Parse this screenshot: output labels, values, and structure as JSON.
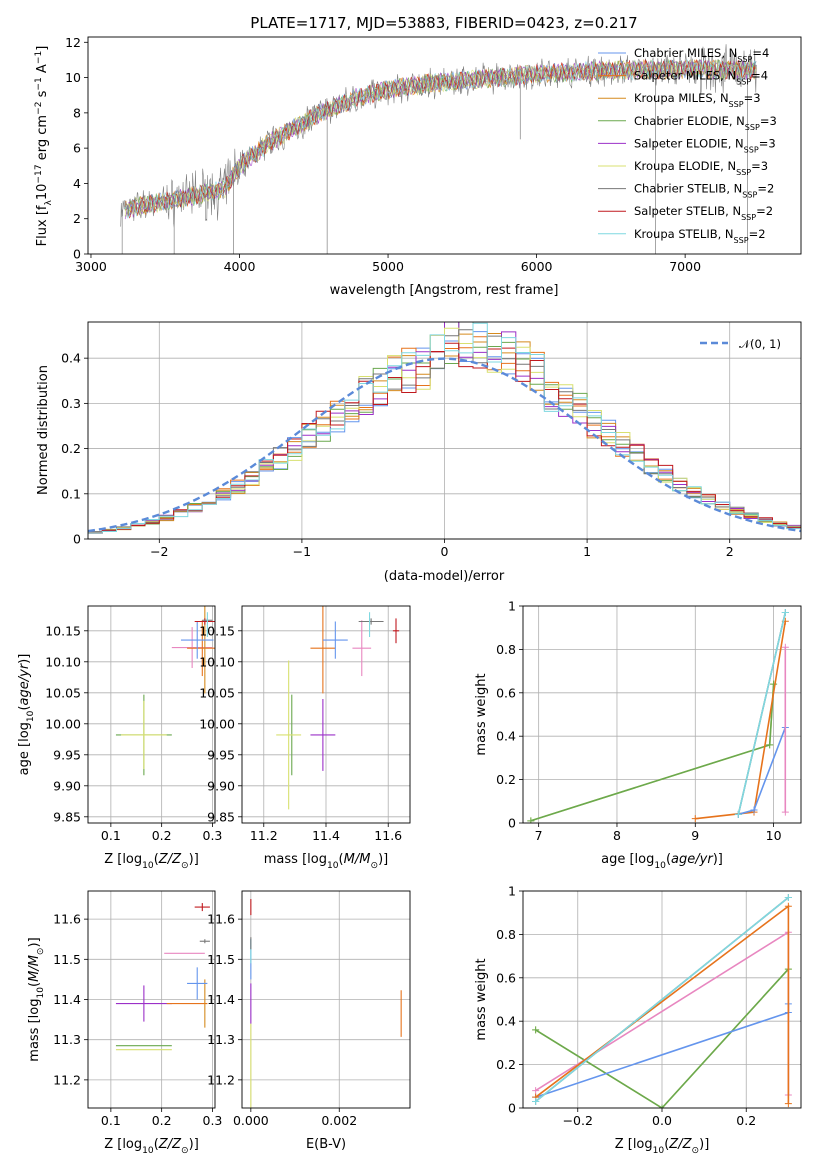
{
  "colors": {
    "chabrier_miles": "#6495ed",
    "salpeter_miles": "#e6731c",
    "kroupa_miles": "#d58a1e",
    "chabrier_elodie": "#6aa84f",
    "salpeter_elodie": "#9b30c8",
    "kroupa_elodie": "#d8e070",
    "chabrier_stelib": "#777777",
    "salpeter_stelib": "#c0191e",
    "kroupa_stelib": "#7fd8e0",
    "pink": "#e887c0",
    "normal_curve": "#5b8ad8",
    "grid": "#b0b0b0"
  },
  "chart_data": [
    {
      "id": "spectrum",
      "type": "line",
      "title": "PLATE=1717, MJD=53883, FIBERID=0423, z=0.217",
      "xlabel": "wavelength [Angstrom, rest frame]",
      "ylabel": "Flux [f_λ 10^-17 erg cm^-2 s^-1 A^-1]",
      "xlim": [
        2980,
        7780
      ],
      "ylim": [
        0,
        12.3
      ],
      "xticks": [
        3000,
        4000,
        5000,
        6000,
        7000
      ],
      "yticks": [
        0,
        2,
        4,
        6,
        8,
        10,
        12
      ],
      "grid": false,
      "legend_position": "top-right",
      "series": [
        {
          "name": "Chabrier MILES, N_SSP=4"
        },
        {
          "name": "Salpeter MILES, N_SSP=4"
        },
        {
          "name": "Kroupa MILES, N_SSP=3"
        },
        {
          "name": "Chabrier ELODIE, N_SSP=3"
        },
        {
          "name": "Salpeter ELODIE, N_SSP=3"
        },
        {
          "name": "Kroupa ELODIE, N_SSP=3"
        },
        {
          "name": "Chabrier STELIB, N_SSP=2"
        },
        {
          "name": "Salpeter STELIB, N_SSP=2"
        },
        {
          "name": "Kroupa STELIB, N_SSP=2"
        }
      ],
      "continuum": {
        "x": [
          3200,
          3500,
          3700,
          3900,
          4000,
          4200,
          4500,
          4800,
          5000,
          5300,
          5600,
          6000,
          6500,
          7000,
          7500
        ],
        "y": [
          2.5,
          3.0,
          3.3,
          3.7,
          5.0,
          6.3,
          7.8,
          8.9,
          9.3,
          9.7,
          9.9,
          10.2,
          10.4,
          10.5,
          10.4
        ]
      }
    },
    {
      "id": "residuals",
      "type": "area",
      "xlabel": "(data-model)/error",
      "ylabel": "Normed distribution",
      "xlim": [
        -2.5,
        2.5
      ],
      "ylim": [
        0,
        0.48
      ],
      "xticks": [
        -2,
        -1,
        0,
        1,
        2
      ],
      "yticks": [
        0.0,
        0.1,
        0.2,
        0.3,
        0.4
      ],
      "grid": true,
      "legend_position": "top-right",
      "legend": "𝒩(0, 1)",
      "normal": {
        "mean": 0,
        "std": 1
      }
    },
    {
      "id": "age_vs_Z",
      "type": "scatter",
      "xlabel": "Z [log10(Z/Z⊙)]",
      "ylabel": "age [log10(age/yr)]",
      "xlim": [
        0.055,
        0.305
      ],
      "ylim": [
        9.84,
        10.19
      ],
      "xticks": [
        0.1,
        0.2,
        0.3
      ],
      "xtick_labels": [
        "0.1",
        "0.2",
        "0.3"
      ],
      "yticks": [
        9.85,
        9.9,
        9.95,
        10.0,
        10.05,
        10.1,
        10.15
      ],
      "ytick_labels": [
        "9.85",
        "9.90",
        "9.95",
        "10.00",
        "10.05",
        "10.10",
        "10.15"
      ],
      "grid": true,
      "points": [
        {
          "x": 0.165,
          "y": 9.982,
          "xerr": 0.055,
          "yerr": 0.065,
          "color": "#6aa84f"
        },
        {
          "x": 0.165,
          "y": 9.982,
          "xerr": 0.045,
          "yerr": 0.055,
          "color": "#d8e070"
        },
        {
          "x": 0.26,
          "y": 10.123,
          "xerr": 0.04,
          "yerr": 0.033,
          "color": "#e887c0"
        },
        {
          "x": 0.28,
          "y": 10.122,
          "xerr": 0.03,
          "yerr": 0.045,
          "color": "#e6731c"
        },
        {
          "x": 0.285,
          "y": 10.122,
          "xerr": 0.0,
          "yerr": 0.073,
          "color": "#d58a1e"
        },
        {
          "x": 0.27,
          "y": 10.135,
          "xerr": 0.032,
          "yerr": 0.03,
          "color": "#6495ed"
        },
        {
          "x": 0.285,
          "y": 10.165,
          "xerr": 0.02,
          "yerr": 0.005,
          "color": "#c0191e"
        },
        {
          "x": 0.29,
          "y": 10.167,
          "xerr": 0.01,
          "yerr": 0.003,
          "color": "#777777"
        },
        {
          "x": 0.29,
          "y": 10.16,
          "xerr": 0.0,
          "yerr": 0.02,
          "color": "#7fd8e0"
        }
      ]
    },
    {
      "id": "age_vs_mass",
      "type": "scatter",
      "xlabel": "mass [log10(M/M⊙)]",
      "ylabel": "",
      "xlim": [
        11.13,
        11.67
      ],
      "ylim": [
        9.84,
        10.19
      ],
      "xticks": [
        11.2,
        11.4,
        11.6
      ],
      "xtick_labels": [
        "11.2",
        "11.4",
        "11.6"
      ],
      "yticks": [
        9.85,
        9.9,
        9.95,
        10.0,
        10.05,
        10.1,
        10.15
      ],
      "ytick_labels": [
        "9.85",
        "9.90",
        "9.95",
        "10.00",
        "10.05",
        "10.10",
        "10.15"
      ],
      "grid": true,
      "points": [
        {
          "x": 11.29,
          "y": 9.982,
          "xerr": 0.0,
          "yerr": 0.065,
          "color": "#6aa84f"
        },
        {
          "x": 11.28,
          "y": 9.982,
          "xerr": 0.04,
          "yerr": 0.12,
          "color": "#d8e070"
        },
        {
          "x": 11.39,
          "y": 9.982,
          "xerr": 0.04,
          "yerr": 0.058,
          "color": "#9b30c8"
        },
        {
          "x": 11.39,
          "y": 10.122,
          "xerr": 0.04,
          "yerr": 0.073,
          "color": "#e6731c"
        },
        {
          "x": 11.43,
          "y": 10.135,
          "xerr": 0.04,
          "yerr": 0.03,
          "color": "#6495ed"
        },
        {
          "x": 11.515,
          "y": 10.122,
          "xerr": 0.03,
          "yerr": 0.045,
          "color": "#e887c0"
        },
        {
          "x": 11.545,
          "y": 10.165,
          "xerr": 0.04,
          "yerr": 0.005,
          "color": "#777777"
        },
        {
          "x": 11.625,
          "y": 10.15,
          "xerr": 0.01,
          "yerr": 0.02,
          "color": "#c0191e"
        },
        {
          "x": 11.54,
          "y": 10.16,
          "xerr": 0.0,
          "yerr": 0.02,
          "color": "#7fd8e0"
        }
      ]
    },
    {
      "id": "weight_vs_age",
      "type": "line",
      "xlabel": "age [log10(age/yr)]",
      "ylabel": "mass weight",
      "xlim": [
        6.8,
        10.35
      ],
      "ylim": [
        0,
        1.0
      ],
      "xticks": [
        7,
        8,
        9,
        10
      ],
      "yticks": [
        0.0,
        0.2,
        0.4,
        0.6,
        0.8,
        1.0
      ],
      "grid": true,
      "series": [
        {
          "color": "#d8e070",
          "x": [
            6.9,
            9.95,
            10.0
          ],
          "y": [
            0.01,
            0.36,
            0.64
          ]
        },
        {
          "color": "#6aa84f",
          "x": [
            6.9,
            9.95,
            10.0
          ],
          "y": [
            0.01,
            0.36,
            0.64
          ]
        },
        {
          "color": "#e6731c",
          "x": [
            9.0,
            9.75,
            10.15
          ],
          "y": [
            0.02,
            0.05,
            0.93
          ]
        },
        {
          "color": "#6495ed",
          "x": [
            9.55,
            9.75,
            10.15
          ],
          "y": [
            0.04,
            0.06,
            0.44
          ]
        },
        {
          "color": "#e887c0",
          "x": [
            10.15,
            10.15
          ],
          "y": [
            0.81,
            0.05
          ]
        },
        {
          "color": "#777777",
          "x": [
            9.55,
            10.15
          ],
          "y": [
            0.04,
            0.97
          ]
        },
        {
          "color": "#7fd8e0",
          "x": [
            9.55,
            10.15
          ],
          "y": [
            0.04,
            0.97
          ]
        }
      ]
    },
    {
      "id": "mass_vs_Z",
      "type": "scatter",
      "xlabel": "Z [log10(Z/Z⊙)]",
      "ylabel": "mass [log10(M/M⊙)]",
      "xlim": [
        0.055,
        0.305
      ],
      "ylim": [
        11.13,
        11.67
      ],
      "xticks": [
        0.1,
        0.2,
        0.3
      ],
      "xtick_labels": [
        "0.1",
        "0.2",
        "0.3"
      ],
      "yticks": [
        11.2,
        11.3,
        11.4,
        11.5,
        11.6
      ],
      "ytick_labels": [
        "11.2",
        "11.3",
        "11.4",
        "11.5",
        "11.6"
      ],
      "grid": true,
      "points": [
        {
          "x": 0.165,
          "y": 11.285,
          "xerr": 0.055,
          "yerr": 0.0,
          "color": "#6aa84f"
        },
        {
          "x": 0.165,
          "y": 11.275,
          "xerr": 0.055,
          "yerr": 0.0,
          "color": "#d8e070"
        },
        {
          "x": 0.165,
          "y": 11.39,
          "xerr": 0.055,
          "yerr": 0.045,
          "color": "#9b30c8"
        },
        {
          "x": 0.25,
          "y": 11.39,
          "xerr": 0.04,
          "yerr": 0.0,
          "color": "#e6731c"
        },
        {
          "x": 0.285,
          "y": 11.39,
          "xerr": 0.0,
          "yerr": 0.06,
          "color": "#d58a1e"
        },
        {
          "x": 0.27,
          "y": 11.44,
          "xerr": 0.02,
          "yerr": 0.04,
          "color": "#6495ed"
        },
        {
          "x": 0.245,
          "y": 11.515,
          "xerr": 0.04,
          "yerr": 0.0,
          "color": "#e887c0"
        },
        {
          "x": 0.285,
          "y": 11.545,
          "xerr": 0.01,
          "yerr": 0.005,
          "color": "#777777"
        },
        {
          "x": 0.28,
          "y": 11.63,
          "xerr": 0.015,
          "yerr": 0.01,
          "color": "#c0191e"
        }
      ]
    },
    {
      "id": "mass_vs_EBV",
      "type": "scatter",
      "xlabel": "E(B-V)",
      "ylabel": "",
      "xlim": [
        -0.0002,
        0.0036
      ],
      "ylim": [
        11.13,
        11.67
      ],
      "xticks": [
        0.0,
        0.002
      ],
      "xtick_labels": [
        "0.000",
        "0.002"
      ],
      "yticks": [
        11.2,
        11.3,
        11.4,
        11.5,
        11.6
      ],
      "ytick_labels": [
        "11.2",
        "11.3",
        "11.4",
        "11.5",
        "11.6"
      ],
      "grid": true,
      "points": [
        {
          "x": 0.0,
          "y": 11.22,
          "xerr": 0.0,
          "yerr": 0.12,
          "color": "#d8e070"
        },
        {
          "x": 0.0,
          "y": 11.39,
          "xerr": 0.0,
          "yerr": 0.05,
          "color": "#9b30c8"
        },
        {
          "x": 0.0,
          "y": 11.5,
          "xerr": 0.0,
          "yerr": 0.05,
          "color": "#6495ed"
        },
        {
          "x": 0.0,
          "y": 11.52,
          "xerr": 0.0,
          "yerr": 0.03,
          "color": "#7fd8e0"
        },
        {
          "x": 0.0,
          "y": 11.54,
          "xerr": 0.0,
          "yerr": 0.015,
          "color": "#777777"
        },
        {
          "x": 0.0,
          "y": 11.63,
          "xerr": 0.0,
          "yerr": 0.02,
          "color": "#c0191e"
        },
        {
          "x": 0.0034,
          "y": 11.365,
          "xerr": 0.0,
          "yerr": 0.058,
          "color": "#e6731c"
        }
      ]
    },
    {
      "id": "weight_vs_Z",
      "type": "line",
      "xlabel": "Z [log10(Z/Z⊙)]",
      "ylabel": "mass weight",
      "xlim": [
        -0.33,
        0.33
      ],
      "ylim": [
        0,
        1.0
      ],
      "xticks": [
        -0.2,
        0.0,
        0.2
      ],
      "xtick_labels": [
        "−0.2",
        "0.0",
        "0.2"
      ],
      "yticks": [
        0.0,
        0.2,
        0.4,
        0.6,
        0.8,
        1.0
      ],
      "grid": true,
      "series": [
        {
          "color": "#d8e070",
          "x": [
            -0.3,
            0.0,
            0.3
          ],
          "y": [
            0.36,
            0.0,
            0.64
          ]
        },
        {
          "color": "#6aa84f",
          "x": [
            -0.3,
            0.0,
            0.3
          ],
          "y": [
            0.36,
            0.0,
            0.64
          ]
        },
        {
          "color": "#6495ed",
          "x": [
            -0.3,
            0.3,
            0.3
          ],
          "y": [
            0.05,
            0.44,
            0.48
          ]
        },
        {
          "color": "#e887c0",
          "x": [
            -0.3,
            0.3,
            0.3
          ],
          "y": [
            0.08,
            0.81,
            0.06
          ]
        },
        {
          "color": "#e6731c",
          "x": [
            -0.3,
            0.3,
            0.3
          ],
          "y": [
            0.05,
            0.93,
            0.02
          ]
        },
        {
          "color": "#777777",
          "x": [
            -0.3,
            0.3
          ],
          "y": [
            0.03,
            0.97
          ]
        },
        {
          "color": "#7fd8e0",
          "x": [
            -0.3,
            0.3
          ],
          "y": [
            0.03,
            0.97
          ]
        }
      ]
    }
  ]
}
